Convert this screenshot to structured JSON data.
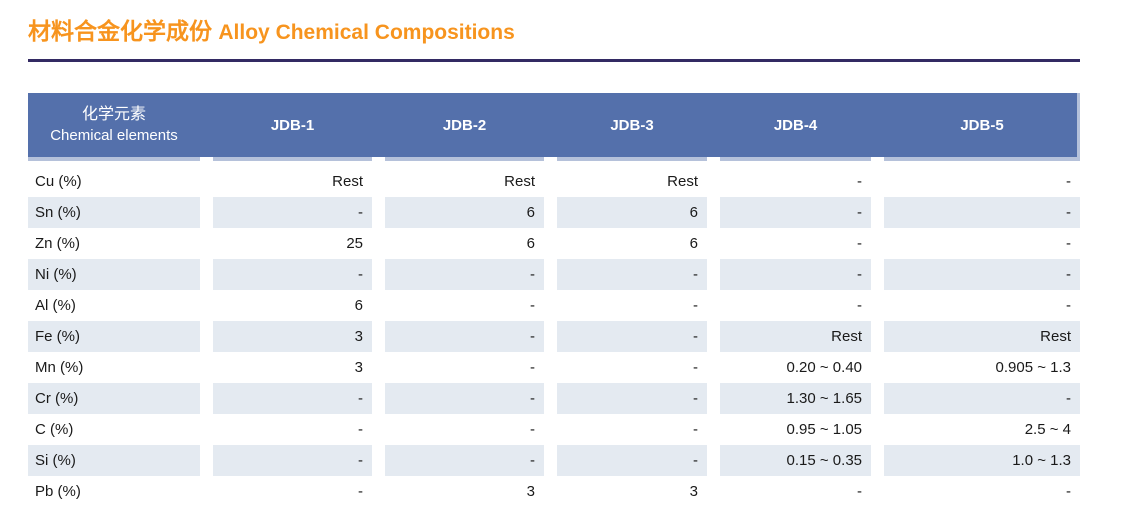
{
  "page": {
    "title_zh": "材料合金化学成份",
    "title_en": "Alloy Chemical Compositions"
  },
  "colors": {
    "accent_orange": "#F7941E",
    "rule_purple": "#332A63",
    "header_blue": "#5470AB",
    "row_alt_blue": "#E4EAF1",
    "header_strip": "#B5C1DA"
  },
  "table": {
    "element_header_zh": "化学元素",
    "element_header_en": "Chemical elements",
    "columns": [
      "JDB-1",
      "JDB-2",
      "JDB-3",
      "JDB-4",
      "JDB-5"
    ],
    "rows": [
      {
        "element": "Cu (%)",
        "values": [
          "Rest",
          "Rest",
          "Rest",
          "-",
          "-"
        ]
      },
      {
        "element": "Sn (%)",
        "values": [
          "-",
          "6",
          "6",
          "-",
          "-"
        ]
      },
      {
        "element": "Zn (%)",
        "values": [
          "25",
          "6",
          "6",
          "-",
          "-"
        ]
      },
      {
        "element": "Ni (%)",
        "values": [
          "-",
          "-",
          "-",
          "-",
          "-"
        ]
      },
      {
        "element": "Al (%)",
        "values": [
          "6",
          "-",
          "-",
          "-",
          "-"
        ]
      },
      {
        "element": "Fe (%)",
        "values": [
          "3",
          "-",
          "-",
          "Rest",
          "Rest"
        ]
      },
      {
        "element": "Mn (%)",
        "values": [
          "3",
          "-",
          "-",
          "0.20 ~ 0.40",
          "0.905 ~ 1.3"
        ]
      },
      {
        "element": "Cr (%)",
        "values": [
          "-",
          "-",
          "-",
          "1.30 ~ 1.65",
          "-"
        ]
      },
      {
        "element": "C (%)",
        "values": [
          "-",
          "-",
          "-",
          "0.95 ~ 1.05",
          "2.5 ~ 4"
        ]
      },
      {
        "element": "Si (%)",
        "values": [
          "-",
          "-",
          "-",
          "0.15 ~ 0.35",
          "1.0 ~ 1.3"
        ]
      },
      {
        "element": "Pb (%)",
        "values": [
          "-",
          "3",
          "3",
          "-",
          "-"
        ]
      }
    ]
  }
}
